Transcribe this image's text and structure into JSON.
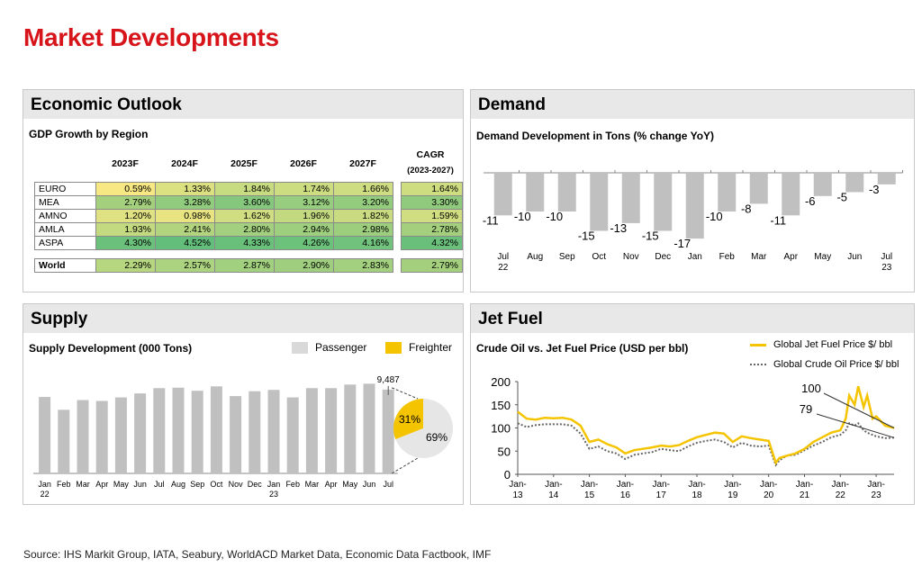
{
  "page_title": "Market Developments",
  "source": "Source: IHS Markit Group, IATA, Seabury, WorldACD Market Data, Economic Data Factbook, IMF",
  "colors": {
    "brand_red": "#d7141a",
    "bar_gray": "#c0c0c0",
    "freighter": "#f5c400",
    "header_bg": "#e8e8e8"
  },
  "economic": {
    "title": "Economic Outlook",
    "subtitle": "GDP Growth by Region",
    "cagr_label": "CAGR",
    "cagr_range": "(2023-2027)",
    "columns": [
      "2023F",
      "2024F",
      "2025F",
      "2026F",
      "2027F"
    ],
    "rows": [
      {
        "region": "EURO",
        "values": [
          "0.59%",
          "1.33%",
          "1.84%",
          "1.74%",
          "1.66%"
        ],
        "cagr": "1.64%"
      },
      {
        "region": "MEA",
        "values": [
          "2.79%",
          "3.28%",
          "3.60%",
          "3.12%",
          "3.20%"
        ],
        "cagr": "3.30%"
      },
      {
        "region": "AMNO",
        "values": [
          "1.20%",
          "0.98%",
          "1.62%",
          "1.96%",
          "1.82%"
        ],
        "cagr": "1.59%"
      },
      {
        "region": "AMLA",
        "values": [
          "1.93%",
          "2.41%",
          "2.80%",
          "2.94%",
          "2.98%"
        ],
        "cagr": "2.78%"
      },
      {
        "region": "ASPA",
        "values": [
          "4.30%",
          "4.52%",
          "4.33%",
          "4.26%",
          "4.16%"
        ],
        "cagr": "4.32%"
      }
    ],
    "world": {
      "region": "World",
      "values": [
        "2.29%",
        "2.57%",
        "2.87%",
        "2.90%",
        "2.83%"
      ],
      "cagr": "2.79%"
    }
  },
  "demand": {
    "title": "Demand"
  },
  "supply": {
    "title": "Supply",
    "legend_passenger": "Passenger",
    "legend_freighter": "Freighter"
  },
  "jetfuel": {
    "title": "Jet Fuel",
    "legend_jet": "Global Jet Fuel Price $/ bbl",
    "legend_crude": "Global Crude Oil Price $/ bbl"
  },
  "chart_data": [
    {
      "type": "bar",
      "title": "Demand Development in Tons (% change YoY)",
      "categories": [
        "Jul\n22",
        "Aug",
        "Sep",
        "Oct",
        "Nov",
        "Dec",
        "Jan",
        "Feb",
        "Mar",
        "Apr",
        "May",
        "Jun",
        "Jul\n23"
      ],
      "values": [
        -11,
        -10,
        -10,
        -15,
        -13,
        -15,
        -17,
        -10,
        -8,
        -11,
        -6,
        -5,
        -3
      ]
    },
    {
      "type": "bar",
      "title": "Supply Development (000 Tons)",
      "categories": [
        "Jan\n22",
        "Feb",
        "Mar",
        "Apr",
        "May",
        "Jun",
        "Jul",
        "Aug",
        "Sep",
        "Oct",
        "Nov",
        "Dec",
        "Jan\n23",
        "Feb",
        "Mar",
        "Apr",
        "May",
        "Jun",
        "Jul"
      ],
      "values": [
        8650,
        7200,
        8300,
        8200,
        8600,
        9050,
        9650,
        9700,
        9350,
        9850,
        8750,
        9300,
        9450,
        8600,
        9650,
        9650,
        10050,
        10150,
        9487
      ],
      "last_value_label": "9,487",
      "ylim": [
        0,
        11000
      ],
      "pie": {
        "labels": [
          "31%",
          "69%"
        ],
        "values": [
          31,
          69
        ],
        "series": [
          "Freighter",
          "Passenger"
        ]
      }
    },
    {
      "type": "line",
      "title": "Crude Oil vs. Jet Fuel Price (USD per bbl)",
      "x_ticks": [
        "Jan-\n13",
        "Jan-\n14",
        "Jan-\n15",
        "Jan-\n16",
        "Jan-\n17",
        "Jan-\n18",
        "Jan-\n19",
        "Jan-\n20",
        "Jan-\n21",
        "Jan-\n22",
        "Jan-\n23"
      ],
      "y_ticks": [
        "0",
        "50",
        "100",
        "150",
        "200"
      ],
      "ylim": [
        0,
        200
      ],
      "x": [
        2013.0,
        2013.25,
        2013.5,
        2013.75,
        2014.0,
        2014.25,
        2014.5,
        2014.75,
        2015.0,
        2015.25,
        2015.5,
        2015.75,
        2016.0,
        2016.25,
        2016.5,
        2016.75,
        2017.0,
        2017.25,
        2017.5,
        2017.75,
        2018.0,
        2018.25,
        2018.5,
        2018.75,
        2019.0,
        2019.25,
        2019.5,
        2019.75,
        2020.0,
        2020.2,
        2020.3,
        2020.5,
        2020.75,
        2021.0,
        2021.25,
        2021.5,
        2021.75,
        2022.0,
        2022.15,
        2022.25,
        2022.4,
        2022.5,
        2022.65,
        2022.75,
        2022.9,
        2023.0,
        2023.25,
        2023.5
      ],
      "series": [
        {
          "name": "Global Jet Fuel Price $/ bbl",
          "values": [
            135,
            120,
            118,
            122,
            121,
            122,
            118,
            105,
            70,
            75,
            65,
            58,
            45,
            52,
            55,
            58,
            62,
            60,
            63,
            72,
            80,
            85,
            90,
            88,
            70,
            82,
            78,
            75,
            72,
            25,
            35,
            40,
            45,
            55,
            70,
            80,
            90,
            95,
            120,
            170,
            150,
            190,
            145,
            170,
            120,
            125,
            105,
            100
          ]
        },
        {
          "name": "Global Crude Oil Price $/ bbl",
          "values": [
            110,
            102,
            106,
            108,
            108,
            108,
            105,
            88,
            55,
            60,
            50,
            45,
            33,
            42,
            45,
            48,
            55,
            52,
            50,
            60,
            68,
            72,
            75,
            70,
            58,
            68,
            62,
            60,
            62,
            20,
            30,
            40,
            42,
            52,
            62,
            70,
            80,
            85,
            95,
            110,
            105,
            110,
            95,
            90,
            85,
            82,
            78,
            79
          ]
        }
      ],
      "annotations": [
        "100",
        "79"
      ]
    }
  ]
}
